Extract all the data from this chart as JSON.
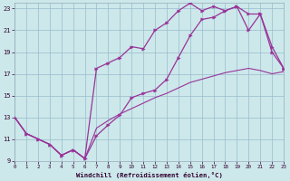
{
  "bg_color": "#cce8ea",
  "grid_color": "#99bbcc",
  "line_color": "#993399",
  "xlabel": "Windchill (Refroidissement éolien,°C)",
  "xlim": [
    0,
    23
  ],
  "ylim": [
    9,
    23.5
  ],
  "yticks": [
    9,
    11,
    13,
    15,
    17,
    19,
    21,
    23
  ],
  "xticks": [
    0,
    1,
    2,
    3,
    4,
    5,
    6,
    7,
    8,
    9,
    10,
    11,
    12,
    13,
    14,
    15,
    16,
    17,
    18,
    19,
    20,
    21,
    22,
    23
  ],
  "line1_x": [
    0,
    1,
    2,
    3,
    4,
    5,
    6,
    7,
    8,
    9,
    10,
    11,
    12,
    13,
    14,
    15,
    16,
    17,
    18,
    19,
    20,
    21,
    22,
    23
  ],
  "line1_y": [
    13.0,
    11.5,
    11.0,
    10.5,
    9.5,
    10.0,
    9.2,
    11.3,
    12.3,
    13.2,
    14.8,
    15.2,
    15.5,
    16.5,
    18.5,
    20.5,
    22.0,
    22.2,
    22.8,
    23.2,
    22.5,
    22.5,
    19.5,
    17.5
  ],
  "line2_x": [
    0,
    1,
    2,
    3,
    4,
    5,
    6,
    7,
    8,
    9,
    10,
    11,
    12,
    13,
    14,
    15,
    16,
    17,
    18,
    19,
    20,
    21,
    22,
    23
  ],
  "line2_y": [
    13.0,
    11.5,
    11.0,
    10.5,
    9.5,
    10.0,
    9.2,
    17.5,
    18.0,
    18.5,
    19.5,
    19.3,
    21.0,
    21.7,
    22.8,
    23.5,
    22.8,
    23.2,
    22.8,
    23.2,
    21.0,
    22.5,
    19.0,
    17.5
  ],
  "line3_x": [
    0,
    1,
    2,
    3,
    4,
    5,
    6,
    7,
    8,
    9,
    10,
    11,
    12,
    13,
    14,
    15,
    16,
    17,
    18,
    19,
    20,
    21,
    22,
    23
  ],
  "line3_y": [
    13.0,
    11.5,
    11.0,
    10.5,
    9.5,
    10.0,
    9.2,
    12.0,
    12.7,
    13.3,
    13.8,
    14.3,
    14.8,
    15.2,
    15.7,
    16.2,
    16.5,
    16.8,
    17.1,
    17.3,
    17.5,
    17.3,
    17.0,
    17.2
  ]
}
